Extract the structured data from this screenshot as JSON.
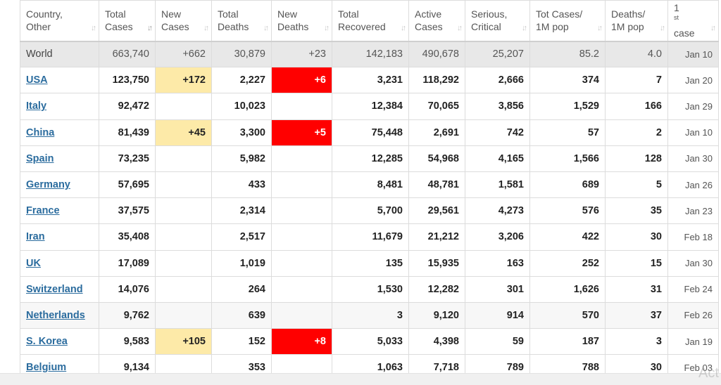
{
  "colors": {
    "link": "#2b6c9e",
    "world_row_bg": "#e8e8e8",
    "new_cases_highlight": "#fdeaa8",
    "new_deaths_highlight": "#ff0000",
    "header_text": "#555555"
  },
  "icons": {
    "sort": "sort-arrows-icon",
    "sort_active": "sort-descending-icon"
  },
  "headers": [
    {
      "line1": "Country,",
      "line2": "Other",
      "sort": "↓↑"
    },
    {
      "line1": "Total",
      "line2": "Cases",
      "sort": "↓↑"
    },
    {
      "line1": "New",
      "line2": "Cases",
      "sort": "↓↑"
    },
    {
      "line1": "Total",
      "line2": "Deaths",
      "sort": "↓↑"
    },
    {
      "line1": "New",
      "line2": "Deaths",
      "sort": "↓↑"
    },
    {
      "line1": "Total",
      "line2": "Recovered",
      "sort": "↓↑"
    },
    {
      "line1": "Active",
      "line2": "Cases",
      "sort": "↓↑"
    },
    {
      "line1": "Serious,",
      "line2": "Critical",
      "sort": "↓↑"
    },
    {
      "line1": "Tot Cases/",
      "line2": "1M pop",
      "sort": "↓↑"
    },
    {
      "line1": "Deaths/",
      "line2": "1M pop",
      "sort": "↓↑"
    },
    {
      "line1": "1",
      "line1_sup": "st",
      "line2": "case",
      "sort": "↓↑"
    }
  ],
  "world": {
    "country": "World",
    "total_cases": "663,740",
    "new_cases": "+662",
    "total_deaths": "30,879",
    "new_deaths": "+23",
    "total_recovered": "142,183",
    "active_cases": "490,678",
    "serious_critical": "25,207",
    "tot_cases_per_1m": "85.2",
    "deaths_per_1m": "4.0",
    "first_case": "Jan 10"
  },
  "rows": [
    {
      "country": "USA",
      "total_cases": "123,750",
      "new_cases": "+172",
      "total_deaths": "2,227",
      "new_deaths": "+6",
      "total_recovered": "3,231",
      "active_cases": "118,292",
      "serious_critical": "2,666",
      "tot_cases_per_1m": "374",
      "deaths_per_1m": "7",
      "first_case": "Jan 20"
    },
    {
      "country": "Italy",
      "total_cases": "92,472",
      "new_cases": "",
      "total_deaths": "10,023",
      "new_deaths": "",
      "total_recovered": "12,384",
      "active_cases": "70,065",
      "serious_critical": "3,856",
      "tot_cases_per_1m": "1,529",
      "deaths_per_1m": "166",
      "first_case": "Jan 29"
    },
    {
      "country": "China",
      "total_cases": "81,439",
      "new_cases": "+45",
      "total_deaths": "3,300",
      "new_deaths": "+5",
      "total_recovered": "75,448",
      "active_cases": "2,691",
      "serious_critical": "742",
      "tot_cases_per_1m": "57",
      "deaths_per_1m": "2",
      "first_case": "Jan 10"
    },
    {
      "country": "Spain",
      "total_cases": "73,235",
      "new_cases": "",
      "total_deaths": "5,982",
      "new_deaths": "",
      "total_recovered": "12,285",
      "active_cases": "54,968",
      "serious_critical": "4,165",
      "tot_cases_per_1m": "1,566",
      "deaths_per_1m": "128",
      "first_case": "Jan 30"
    },
    {
      "country": "Germany",
      "total_cases": "57,695",
      "new_cases": "",
      "total_deaths": "433",
      "new_deaths": "",
      "total_recovered": "8,481",
      "active_cases": "48,781",
      "serious_critical": "1,581",
      "tot_cases_per_1m": "689",
      "deaths_per_1m": "5",
      "first_case": "Jan 26"
    },
    {
      "country": "France",
      "total_cases": "37,575",
      "new_cases": "",
      "total_deaths": "2,314",
      "new_deaths": "",
      "total_recovered": "5,700",
      "active_cases": "29,561",
      "serious_critical": "4,273",
      "tot_cases_per_1m": "576",
      "deaths_per_1m": "35",
      "first_case": "Jan 23"
    },
    {
      "country": "Iran",
      "total_cases": "35,408",
      "new_cases": "",
      "total_deaths": "2,517",
      "new_deaths": "",
      "total_recovered": "11,679",
      "active_cases": "21,212",
      "serious_critical": "3,206",
      "tot_cases_per_1m": "422",
      "deaths_per_1m": "30",
      "first_case": "Feb 18"
    },
    {
      "country": "UK",
      "total_cases": "17,089",
      "new_cases": "",
      "total_deaths": "1,019",
      "new_deaths": "",
      "total_recovered": "135",
      "active_cases": "15,935",
      "serious_critical": "163",
      "tot_cases_per_1m": "252",
      "deaths_per_1m": "15",
      "first_case": "Jan 30"
    },
    {
      "country": "Switzerland",
      "total_cases": "14,076",
      "new_cases": "",
      "total_deaths": "264",
      "new_deaths": "",
      "total_recovered": "1,530",
      "active_cases": "12,282",
      "serious_critical": "301",
      "tot_cases_per_1m": "1,626",
      "deaths_per_1m": "31",
      "first_case": "Feb 24"
    },
    {
      "country": "Netherlands",
      "total_cases": "9,762",
      "new_cases": "",
      "total_deaths": "639",
      "new_deaths": "",
      "total_recovered": "3",
      "active_cases": "9,120",
      "serious_critical": "914",
      "tot_cases_per_1m": "570",
      "deaths_per_1m": "37",
      "first_case": "Feb 26"
    },
    {
      "country": "S. Korea",
      "total_cases": "9,583",
      "new_cases": "+105",
      "total_deaths": "152",
      "new_deaths": "+8",
      "total_recovered": "5,033",
      "active_cases": "4,398",
      "serious_critical": "59",
      "tot_cases_per_1m": "187",
      "deaths_per_1m": "3",
      "first_case": "Jan 19"
    },
    {
      "country": "Belgium",
      "total_cases": "9,134",
      "new_cases": "",
      "total_deaths": "353",
      "new_deaths": "",
      "total_recovered": "1,063",
      "active_cases": "7,718",
      "serious_critical": "789",
      "tot_cases_per_1m": "788",
      "deaths_per_1m": "30",
      "first_case": "Feb 03"
    }
  ],
  "watermark": "Act"
}
